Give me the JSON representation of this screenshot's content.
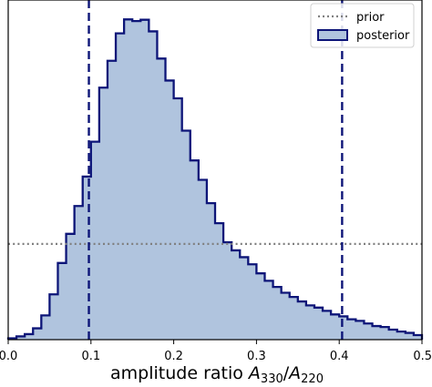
{
  "chart_data": {
    "type": "histogram",
    "xlabel": {
      "text": "amplitude ratio ",
      "math_var1": "A",
      "sub1": "330",
      "sep": "/",
      "math_var2": "A",
      "sub2": "220"
    },
    "ylabel": "",
    "xlim": [
      0.0,
      0.5
    ],
    "ylim": [
      0,
      1.05
    ],
    "x_ticks": [
      0.0,
      0.1,
      0.2,
      0.3,
      0.4,
      0.5
    ],
    "x_tick_labels": [
      "0.0",
      "0.1",
      "0.2",
      "0.3",
      "0.4",
      "0.5"
    ],
    "y_ticks_shown": false,
    "grid": false,
    "legend": {
      "placement": "top-right",
      "entries": [
        {
          "label": "prior",
          "style": "dotted-line",
          "color": "#808080"
        },
        {
          "label": "posterior",
          "style": "filled-patch",
          "fill": "#b0c4de",
          "edge": "#0d1578"
        }
      ]
    },
    "series": [
      {
        "name": "posterior",
        "type": "step-filled",
        "fill_color": "#b0c4de",
        "edge_color": "#0d1578",
        "bin_edges": [
          0.0,
          0.01,
          0.02,
          0.03,
          0.04,
          0.05,
          0.06,
          0.07,
          0.08,
          0.09,
          0.1,
          0.11,
          0.12,
          0.13,
          0.14,
          0.15,
          0.16,
          0.17,
          0.18,
          0.19,
          0.2,
          0.21,
          0.22,
          0.23,
          0.24,
          0.25,
          0.26,
          0.27,
          0.28,
          0.29,
          0.3,
          0.31,
          0.32,
          0.33,
          0.34,
          0.35,
          0.36,
          0.37,
          0.38,
          0.39,
          0.4,
          0.41,
          0.42,
          0.43,
          0.44,
          0.45,
          0.46,
          0.47,
          0.48,
          0.49,
          0.5
        ],
        "values": [
          0.004,
          0.01,
          0.017,
          0.035,
          0.075,
          0.14,
          0.237,
          0.327,
          0.413,
          0.504,
          0.612,
          0.779,
          0.862,
          0.947,
          0.99,
          0.985,
          0.989,
          0.953,
          0.869,
          0.801,
          0.746,
          0.646,
          0.554,
          0.494,
          0.422,
          0.36,
          0.301,
          0.276,
          0.255,
          0.233,
          0.205,
          0.182,
          0.163,
          0.145,
          0.132,
          0.118,
          0.106,
          0.099,
          0.089,
          0.078,
          0.072,
          0.063,
          0.058,
          0.05,
          0.042,
          0.039,
          0.031,
          0.025,
          0.021,
          0.014
        ]
      },
      {
        "name": "prior",
        "type": "hline-dotted",
        "color": "#808080",
        "y": 0.296
      }
    ],
    "vlines": [
      {
        "x": 0.0975,
        "color": "#0d1578",
        "style": "dashed"
      },
      {
        "x": 0.4035,
        "color": "#0d1578",
        "style": "dashed"
      }
    ]
  }
}
